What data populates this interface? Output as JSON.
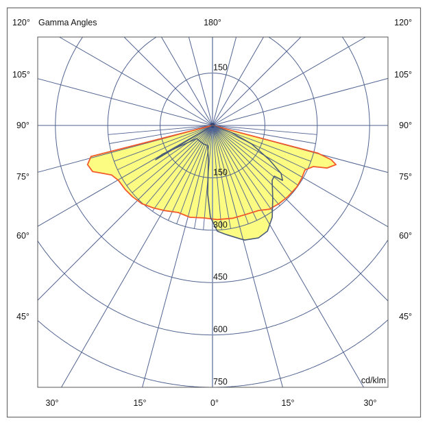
{
  "chart_data": {
    "type": "polar",
    "title": "Gamma Angles",
    "unit": "cd/klm",
    "radial_ticks": [
      150,
      300,
      450,
      600,
      750
    ],
    "radial_tick_labels": [
      "150",
      "300",
      "450",
      "600",
      "750"
    ],
    "top_radial_label": "150",
    "rmax": 750,
    "grid": true,
    "colors": {
      "grid": "#4f6290",
      "fill": "#fcfc82",
      "c0_c180": "#f2592b",
      "c90_c270": "#4a5b78",
      "frame": "#6b6b6b"
    },
    "angle_labels": {
      "top": {
        "left": "120°",
        "center": "180°",
        "right": "120°"
      },
      "left": [
        "105°",
        "90°",
        "75°",
        "60°",
        "45°"
      ],
      "right": [
        "105°",
        "90°",
        "75°",
        "60°",
        "45°"
      ],
      "bottom": [
        "30°",
        "15°",
        "0°",
        "15°",
        "30°"
      ]
    },
    "series": [
      {
        "color": "#f2592b",
        "points": [
          [
            -90,
            0
          ],
          [
            -75.7,
            359
          ],
          [
            -72.6,
            375
          ],
          [
            -69,
            368
          ],
          [
            -66.4,
            343
          ],
          [
            -63.9,
            322
          ],
          [
            -59.7,
            312
          ],
          [
            -53.5,
            310
          ],
          [
            -48.4,
            307
          ],
          [
            -42.1,
            302
          ],
          [
            -35.9,
            291
          ],
          [
            -29.4,
            280
          ],
          [
            -21.5,
            268
          ],
          [
            -13.8,
            271
          ],
          [
            -5.5,
            266
          ],
          [
            2.9,
            270
          ],
          [
            12.5,
            272
          ],
          [
            19.9,
            272
          ],
          [
            28.4,
            277
          ],
          [
            34.2,
            290
          ],
          [
            40.4,
            294
          ],
          [
            46.6,
            297
          ],
          [
            53.8,
            299
          ],
          [
            59.4,
            297
          ],
          [
            64.3,
            294
          ],
          [
            67.8,
            312
          ],
          [
            69.6,
            350
          ],
          [
            72.4,
            371
          ],
          [
            73.9,
            354
          ],
          [
            75.3,
            311
          ],
          [
            90,
            0
          ]
        ]
      },
      {
        "color": "#4a5b78",
        "points": [
          [
            -90,
            0
          ],
          [
            -62,
            0
          ],
          [
            -58.9,
            190
          ],
          [
            -60.1,
            165
          ],
          [
            -50.4,
            59
          ],
          [
            -25.7,
            59
          ],
          [
            -13.6,
            59
          ],
          [
            -6.8,
            99
          ],
          [
            -4,
            197
          ],
          [
            -1.3,
            263
          ],
          [
            2.6,
            303
          ],
          [
            7.2,
            315
          ],
          [
            13.6,
            334
          ],
          [
            15.7,
            341
          ],
          [
            22.2,
            348
          ],
          [
            27.5,
            341
          ],
          [
            33,
            314
          ],
          [
            39.4,
            272
          ],
          [
            47.4,
            232
          ],
          [
            50.6,
            229
          ],
          [
            51.9,
            255
          ],
          [
            55,
            240
          ],
          [
            58.9,
            190
          ],
          [
            64.7,
            124
          ],
          [
            69.7,
            57
          ],
          [
            90,
            0
          ]
        ]
      }
    ]
  }
}
